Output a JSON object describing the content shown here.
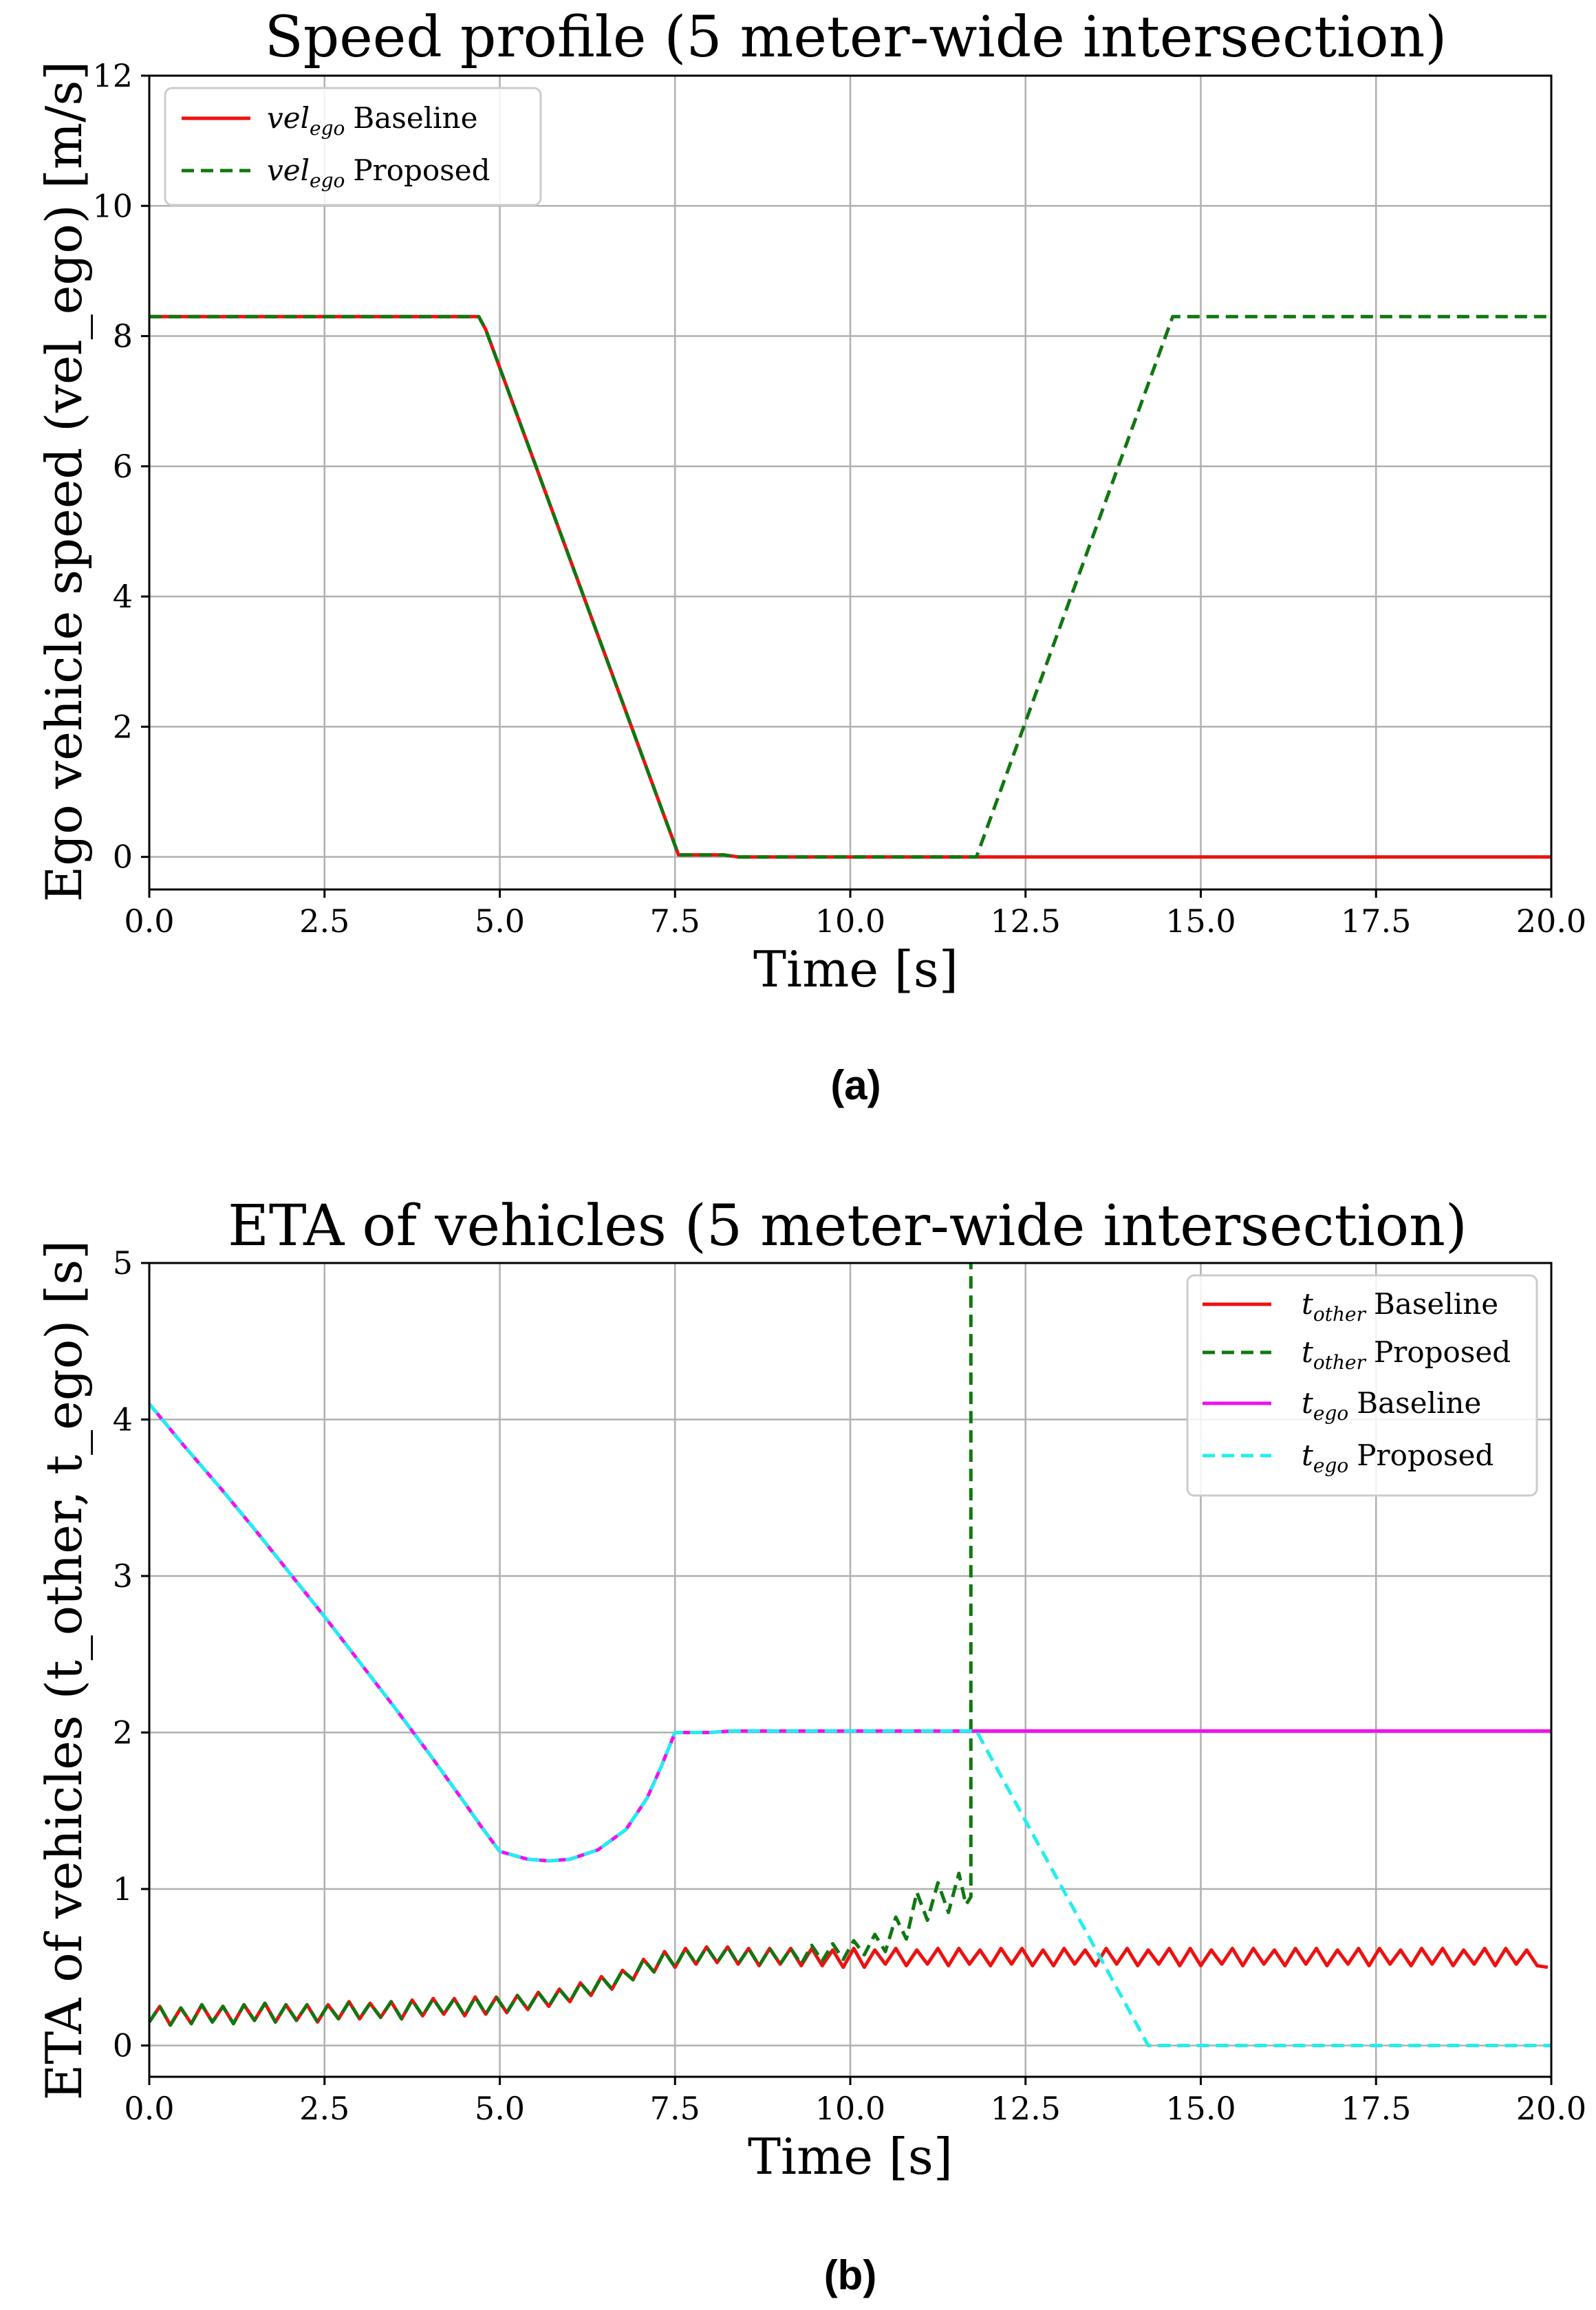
{
  "panels": {
    "a_label": "(a)",
    "b_label": "(b)"
  },
  "chart_data": [
    {
      "type": "line",
      "title": "Speed profile (5 meter-wide intersection)",
      "xlabel": "Time [s]",
      "ylabel": "Ego vehicle speed (vel_ego) [m/s]",
      "xlim": [
        0,
        20
      ],
      "ylim": [
        -0.5,
        12
      ],
      "xticks": [
        "0.0",
        "2.5",
        "5.0",
        "7.5",
        "10.0",
        "12.5",
        "15.0",
        "17.5",
        "20.0"
      ],
      "yticks": [
        "0",
        "2",
        "4",
        "6",
        "8",
        "10",
        "12"
      ],
      "grid": true,
      "legend_position": "top-left",
      "series": [
        {
          "name": "vel_ego Baseline",
          "legend_math": "vel",
          "legend_sub": "ego",
          "legend_text": "Baseline",
          "color": "#ee1111",
          "dash": "solid",
          "x": [
            0,
            4.7,
            4.8,
            7.55,
            8.2,
            8.4,
            20
          ],
          "y": [
            8.3,
            8.3,
            8.1,
            0.03,
            0.03,
            0.0,
            0.0
          ]
        },
        {
          "name": "vel_ego Proposed",
          "legend_math": "vel",
          "legend_sub": "ego",
          "legend_text": "Proposed",
          "color": "#117711",
          "dash": "dashed",
          "x": [
            0,
            4.7,
            4.8,
            7.55,
            8.2,
            8.4,
            11.8,
            14.6,
            20
          ],
          "y": [
            8.3,
            8.3,
            8.1,
            0.03,
            0.03,
            0.0,
            0.0,
            8.3,
            8.3
          ]
        }
      ]
    },
    {
      "type": "line",
      "title": "ETA of vehicles (5 meter-wide intersection)",
      "xlabel": "Time [s]",
      "ylabel": "ETA of vehicles (t_other, t_ego) [s]",
      "xlim": [
        0,
        20
      ],
      "ylim": [
        -0.2,
        5
      ],
      "xticks": [
        "0.0",
        "2.5",
        "5.0",
        "7.5",
        "10.0",
        "12.5",
        "15.0",
        "17.5",
        "20.0"
      ],
      "yticks": [
        "0",
        "1",
        "2",
        "3",
        "4",
        "5"
      ],
      "grid": true,
      "legend_position": "top-right",
      "series": [
        {
          "name": "t_other Baseline",
          "legend_math": "t",
          "legend_sub": "other",
          "legend_text": "Baseline",
          "color": "#ee1111",
          "dash": "solid",
          "x": [
            0,
            0.15,
            0.3,
            0.45,
            0.6,
            0.75,
            0.9,
            1.05,
            1.2,
            1.35,
            1.5,
            1.65,
            1.8,
            1.95,
            2.1,
            2.25,
            2.4,
            2.55,
            2.7,
            2.85,
            3.0,
            3.15,
            3.3,
            3.45,
            3.6,
            3.75,
            3.9,
            4.05,
            4.2,
            4.35,
            4.5,
            4.65,
            4.8,
            4.95,
            5.1,
            5.25,
            5.4,
            5.55,
            5.7,
            5.85,
            6.0,
            6.15,
            6.3,
            6.45,
            6.6,
            6.75,
            6.9,
            7.05,
            7.2,
            7.35,
            7.5,
            7.65,
            7.8,
            7.95,
            8.1,
            8.25,
            8.4,
            8.55,
            8.7,
            8.85,
            9.0,
            9.15,
            9.3,
            9.45,
            9.6,
            9.75,
            9.9,
            10.05,
            10.2,
            10.35,
            10.5,
            10.65,
            10.8,
            10.95,
            11.1,
            11.25,
            11.4,
            11.55,
            11.7,
            11.85,
            12.0,
            12.15,
            12.3,
            12.45,
            12.6,
            12.75,
            12.9,
            13.05,
            13.2,
            13.35,
            13.5,
            13.65,
            13.8,
            13.95,
            14.1,
            14.25,
            14.4,
            14.55,
            14.7,
            14.85,
            15.0,
            15.15,
            15.3,
            15.45,
            15.6,
            15.75,
            15.9,
            16.05,
            16.2,
            16.35,
            16.5,
            16.65,
            16.8,
            16.95,
            17.1,
            17.25,
            17.4,
            17.55,
            17.7,
            17.85,
            18.0,
            18.15,
            18.3,
            18.45,
            18.6,
            18.75,
            18.9,
            19.05,
            19.2,
            19.35,
            19.5,
            19.65,
            19.8,
            19.95
          ],
          "y": [
            0.15,
            0.25,
            0.13,
            0.24,
            0.14,
            0.26,
            0.15,
            0.25,
            0.14,
            0.26,
            0.16,
            0.27,
            0.15,
            0.26,
            0.16,
            0.26,
            0.15,
            0.26,
            0.17,
            0.28,
            0.17,
            0.27,
            0.18,
            0.28,
            0.17,
            0.29,
            0.19,
            0.3,
            0.2,
            0.3,
            0.19,
            0.31,
            0.2,
            0.31,
            0.21,
            0.32,
            0.23,
            0.34,
            0.25,
            0.36,
            0.28,
            0.4,
            0.32,
            0.44,
            0.36,
            0.48,
            0.42,
            0.55,
            0.47,
            0.6,
            0.5,
            0.62,
            0.52,
            0.63,
            0.53,
            0.63,
            0.52,
            0.62,
            0.51,
            0.62,
            0.52,
            0.62,
            0.51,
            0.62,
            0.51,
            0.61,
            0.5,
            0.62,
            0.5,
            0.61,
            0.52,
            0.62,
            0.51,
            0.61,
            0.52,
            0.62,
            0.51,
            0.62,
            0.52,
            0.61,
            0.51,
            0.62,
            0.52,
            0.62,
            0.51,
            0.61,
            0.51,
            0.62,
            0.52,
            0.61,
            0.51,
            0.62,
            0.52,
            0.62,
            0.51,
            0.61,
            0.52,
            0.62,
            0.51,
            0.62,
            0.51,
            0.61,
            0.52,
            0.62,
            0.51,
            0.62,
            0.52,
            0.61,
            0.51,
            0.62,
            0.52,
            0.62,
            0.51,
            0.61,
            0.52,
            0.62,
            0.51,
            0.62,
            0.52,
            0.61,
            0.51,
            0.62,
            0.52,
            0.62,
            0.51,
            0.61,
            0.52,
            0.62,
            0.51,
            0.62,
            0.52,
            0.61,
            0.51,
            0.5
          ]
        },
        {
          "name": "t_other Proposed",
          "legend_math": "t",
          "legend_sub": "other",
          "legend_text": "Proposed",
          "color": "#117711",
          "dash": "dashed",
          "x": [
            0,
            0.15,
            0.3,
            0.45,
            0.6,
            0.75,
            0.9,
            1.05,
            1.2,
            1.35,
            1.5,
            1.65,
            1.8,
            1.95,
            2.1,
            2.25,
            2.4,
            2.55,
            2.7,
            2.85,
            3.0,
            3.15,
            3.3,
            3.45,
            3.6,
            3.75,
            3.9,
            4.05,
            4.2,
            4.35,
            4.5,
            4.65,
            4.8,
            4.95,
            5.1,
            5.25,
            5.4,
            5.55,
            5.7,
            5.85,
            6.0,
            6.15,
            6.3,
            6.45,
            6.6,
            6.75,
            6.9,
            7.05,
            7.2,
            7.35,
            7.5,
            7.65,
            7.8,
            7.95,
            8.1,
            8.25,
            8.4,
            8.55,
            8.7,
            8.85,
            9.0,
            9.15,
            9.3,
            9.45,
            9.6,
            9.75,
            9.9,
            10.05,
            10.2,
            10.35,
            10.5,
            10.65,
            10.8,
            10.95,
            11.1,
            11.25,
            11.4,
            11.55,
            11.65,
            11.72,
            11.72
          ],
          "y": [
            0.15,
            0.25,
            0.13,
            0.24,
            0.14,
            0.26,
            0.15,
            0.25,
            0.14,
            0.26,
            0.16,
            0.27,
            0.15,
            0.26,
            0.16,
            0.26,
            0.15,
            0.26,
            0.17,
            0.28,
            0.17,
            0.27,
            0.18,
            0.28,
            0.17,
            0.29,
            0.19,
            0.3,
            0.2,
            0.3,
            0.19,
            0.31,
            0.2,
            0.31,
            0.21,
            0.32,
            0.23,
            0.34,
            0.25,
            0.36,
            0.28,
            0.4,
            0.32,
            0.44,
            0.36,
            0.48,
            0.42,
            0.55,
            0.47,
            0.6,
            0.5,
            0.62,
            0.52,
            0.63,
            0.53,
            0.63,
            0.52,
            0.62,
            0.51,
            0.62,
            0.52,
            0.62,
            0.52,
            0.64,
            0.54,
            0.65,
            0.55,
            0.67,
            0.58,
            0.71,
            0.6,
            0.82,
            0.68,
            0.98,
            0.8,
            1.04,
            0.85,
            1.1,
            0.9,
            0.95,
            5.0
          ]
        },
        {
          "name": "t_ego Baseline",
          "legend_math": "t",
          "legend_sub": "ego",
          "legend_text": "Baseline",
          "color": "#ee11ee",
          "dash": "solid",
          "x": [
            0,
            0.5,
            1.0,
            1.5,
            2.0,
            2.5,
            3.0,
            3.5,
            4.0,
            4.5,
            4.75,
            5.0,
            5.4,
            5.7,
            6.0,
            6.4,
            6.8,
            7.1,
            7.3,
            7.5,
            8.0,
            8.3,
            9.0,
            10.0,
            11.0,
            11.8,
            13.0,
            15.0,
            17.5,
            20.0
          ],
          "y": [
            4.1,
            3.83,
            3.57,
            3.3,
            3.02,
            2.74,
            2.45,
            2.16,
            1.86,
            1.55,
            1.39,
            1.24,
            1.19,
            1.18,
            1.19,
            1.25,
            1.38,
            1.58,
            1.78,
            2.0,
            2.0,
            2.01,
            2.01,
            2.01,
            2.01,
            2.01,
            2.01,
            2.01,
            2.01,
            2.01
          ]
        },
        {
          "name": "t_ego Proposed",
          "legend_math": "t",
          "legend_sub": "ego",
          "legend_text": "Proposed",
          "color": "#22eeee",
          "dash": "dashed",
          "x": [
            0,
            0.5,
            1.0,
            1.5,
            2.0,
            2.5,
            3.0,
            3.5,
            4.0,
            4.5,
            4.75,
            5.0,
            5.4,
            5.7,
            6.0,
            6.4,
            6.8,
            7.1,
            7.3,
            7.5,
            8.0,
            8.3,
            9.0,
            10.0,
            11.0,
            11.8,
            14.25,
            15.0,
            17.5,
            20.0
          ],
          "y": [
            4.1,
            3.83,
            3.57,
            3.3,
            3.02,
            2.74,
            2.45,
            2.16,
            1.86,
            1.55,
            1.39,
            1.24,
            1.19,
            1.18,
            1.19,
            1.25,
            1.38,
            1.58,
            1.78,
            2.0,
            2.0,
            2.01,
            2.01,
            2.01,
            2.01,
            2.01,
            0.0,
            0.0,
            0.0,
            0.0
          ]
        }
      ]
    }
  ]
}
